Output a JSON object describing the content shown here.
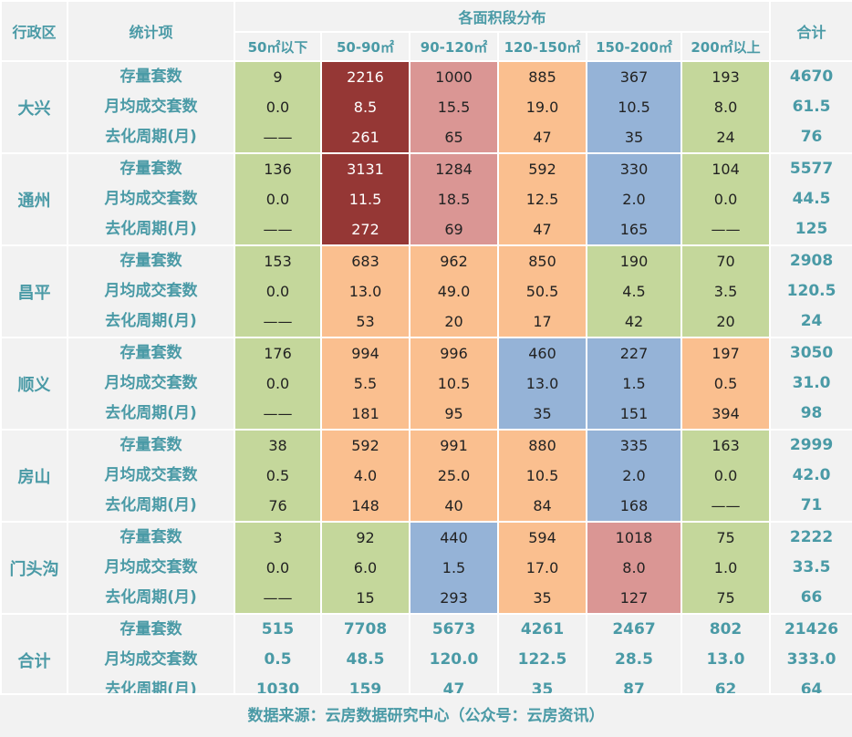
{
  "header": {
    "district_label": "行政区",
    "stat_label": "统计项",
    "dist_label": "各面积段分布",
    "total_label": "合计",
    "columns": [
      "50㎡以下",
      "50-90㎡",
      "90-120㎡",
      "120-150㎡",
      "150-200㎡",
      "200㎡以上"
    ]
  },
  "stat_names": [
    "存量套数",
    "月均成交套数",
    "去化周期(月)"
  ],
  "color_legend": {
    "g": "#c4d79b",
    "d": "#953735",
    "p": "#da9694",
    "o": "#fabf8f",
    "b": "#95b3d7"
  },
  "districts": [
    {
      "name": "大兴",
      "colors": [
        "g",
        "d",
        "p",
        "o",
        "b",
        "g"
      ],
      "rows": [
        {
          "values": [
            "9",
            "2216",
            "1000",
            "885",
            "367",
            "193"
          ],
          "total": "4670"
        },
        {
          "values": [
            "0.0",
            "8.5",
            "15.5",
            "19.0",
            "10.5",
            "8.0"
          ],
          "total": "61.5"
        },
        {
          "values": [
            "——",
            "261",
            "65",
            "47",
            "35",
            "24"
          ],
          "total": "76"
        }
      ]
    },
    {
      "name": "通州",
      "colors": [
        "g",
        "d",
        "p",
        "o",
        "b",
        "g"
      ],
      "rows": [
        {
          "values": [
            "136",
            "3131",
            "1284",
            "592",
            "330",
            "104"
          ],
          "total": "5577"
        },
        {
          "values": [
            "0.0",
            "11.5",
            "18.5",
            "12.5",
            "2.0",
            "0.0"
          ],
          "total": "44.5"
        },
        {
          "values": [
            "——",
            "272",
            "69",
            "47",
            "165",
            "——"
          ],
          "total": "125"
        }
      ]
    },
    {
      "name": "昌平",
      "colors": [
        "g",
        "o",
        "o",
        "o",
        "g",
        "g"
      ],
      "rows": [
        {
          "values": [
            "153",
            "683",
            "962",
            "850",
            "190",
            "70"
          ],
          "total": "2908"
        },
        {
          "values": [
            "0.0",
            "13.0",
            "49.0",
            "50.5",
            "4.5",
            "3.5"
          ],
          "total": "120.5"
        },
        {
          "values": [
            "——",
            "53",
            "20",
            "17",
            "42",
            "20"
          ],
          "total": "24"
        }
      ]
    },
    {
      "name": "顺义",
      "colors": [
        "g",
        "o",
        "o",
        "b",
        "b",
        "o"
      ],
      "rows": [
        {
          "values": [
            "176",
            "994",
            "996",
            "460",
            "227",
            "197"
          ],
          "total": "3050"
        },
        {
          "values": [
            "0.0",
            "5.5",
            "10.5",
            "13.0",
            "1.5",
            "0.5"
          ],
          "total": "31.0"
        },
        {
          "values": [
            "——",
            "181",
            "95",
            "35",
            "151",
            "394"
          ],
          "total": "98"
        }
      ]
    },
    {
      "name": "房山",
      "colors": [
        "g",
        "o",
        "o",
        "o",
        "b",
        "g"
      ],
      "rows": [
        {
          "values": [
            "38",
            "592",
            "991",
            "880",
            "335",
            "163"
          ],
          "total": "2999"
        },
        {
          "values": [
            "0.5",
            "4.0",
            "25.0",
            "10.5",
            "2.0",
            "0.0"
          ],
          "total": "42.0"
        },
        {
          "values": [
            "76",
            "148",
            "40",
            "84",
            "168",
            "——"
          ],
          "total": "71"
        }
      ]
    },
    {
      "name": "门头沟",
      "colors": [
        "g",
        "g",
        "b",
        "o",
        "p",
        "g"
      ],
      "rows": [
        {
          "values": [
            "3",
            "92",
            "440",
            "594",
            "1018",
            "75"
          ],
          "total": "2222"
        },
        {
          "values": [
            "0.0",
            "6.0",
            "1.5",
            "17.0",
            "8.0",
            "1.0"
          ],
          "total": "33.5"
        },
        {
          "values": [
            "——",
            "15",
            "293",
            "35",
            "127",
            "75"
          ],
          "total": "66"
        }
      ]
    },
    {
      "name": "合计",
      "colors": [
        "n",
        "n",
        "n",
        "n",
        "n",
        "n"
      ],
      "rows": [
        {
          "values": [
            "515",
            "7708",
            "5673",
            "4261",
            "2467",
            "802"
          ],
          "total": "21426"
        },
        {
          "values": [
            "0.5",
            "48.5",
            "120.0",
            "122.5",
            "28.5",
            "13.0"
          ],
          "total": "333.0"
        },
        {
          "values": [
            "1030",
            "159",
            "47",
            "35",
            "87",
            "62"
          ],
          "total": "64"
        }
      ]
    }
  ],
  "footer": "数据来源：云房数据研究中心（公众号：云房资讯）"
}
